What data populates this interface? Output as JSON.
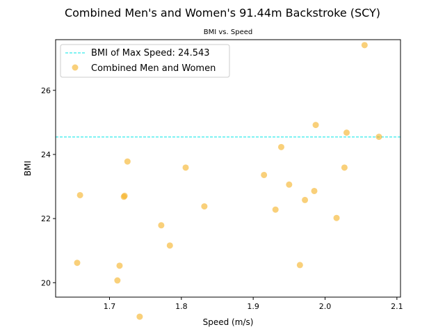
{
  "chart_data": {
    "type": "scatter",
    "title": "Combined Men's and Women's 91.44m Backstroke (SCY)",
    "subtitle": "BMI vs. Speed",
    "xlabel": "Speed (m/s)",
    "ylabel": "BMI",
    "xlim": [
      1.625,
      2.105
    ],
    "ylim": [
      19.55,
      27.58
    ],
    "xticks": [
      1.7,
      1.8,
      1.9,
      2.0,
      2.1
    ],
    "xtick_labels": [
      "1.7",
      "1.8",
      "1.9",
      "2.0",
      "2.1"
    ],
    "yticks": [
      20,
      22,
      24,
      26
    ],
    "ytick_labels": [
      "20",
      "22",
      "24",
      "26"
    ],
    "grid": false,
    "legend_position": "top-left",
    "reference_line": {
      "label": "BMI of Max Speed: 24.543",
      "y": 24.543,
      "color": "#00e5e5",
      "style": "dashed"
    },
    "series": [
      {
        "name": "Combined Men and Women",
        "color": "#f5b021",
        "points": [
          {
            "x": 1.655,
            "y": 20.62
          },
          {
            "x": 1.659,
            "y": 22.73
          },
          {
            "x": 1.711,
            "y": 20.07
          },
          {
            "x": 1.714,
            "y": 20.53
          },
          {
            "x": 1.72,
            "y": 22.68
          },
          {
            "x": 1.721,
            "y": 22.71
          },
          {
            "x": 1.725,
            "y": 23.78
          },
          {
            "x": 1.742,
            "y": 18.94
          },
          {
            "x": 1.772,
            "y": 21.79
          },
          {
            "x": 1.784,
            "y": 21.16
          },
          {
            "x": 1.806,
            "y": 23.59
          },
          {
            "x": 1.832,
            "y": 22.38
          },
          {
            "x": 1.915,
            "y": 23.36
          },
          {
            "x": 1.931,
            "y": 22.28
          },
          {
            "x": 1.939,
            "y": 24.23
          },
          {
            "x": 1.95,
            "y": 23.06
          },
          {
            "x": 1.965,
            "y": 20.55
          },
          {
            "x": 1.972,
            "y": 22.58
          },
          {
            "x": 1.985,
            "y": 22.86
          },
          {
            "x": 1.987,
            "y": 24.92
          },
          {
            "x": 2.016,
            "y": 22.02
          },
          {
            "x": 2.027,
            "y": 23.59
          },
          {
            "x": 2.03,
            "y": 24.68
          },
          {
            "x": 2.055,
            "y": 27.41
          },
          {
            "x": 2.075,
            "y": 24.55
          }
        ]
      }
    ]
  }
}
